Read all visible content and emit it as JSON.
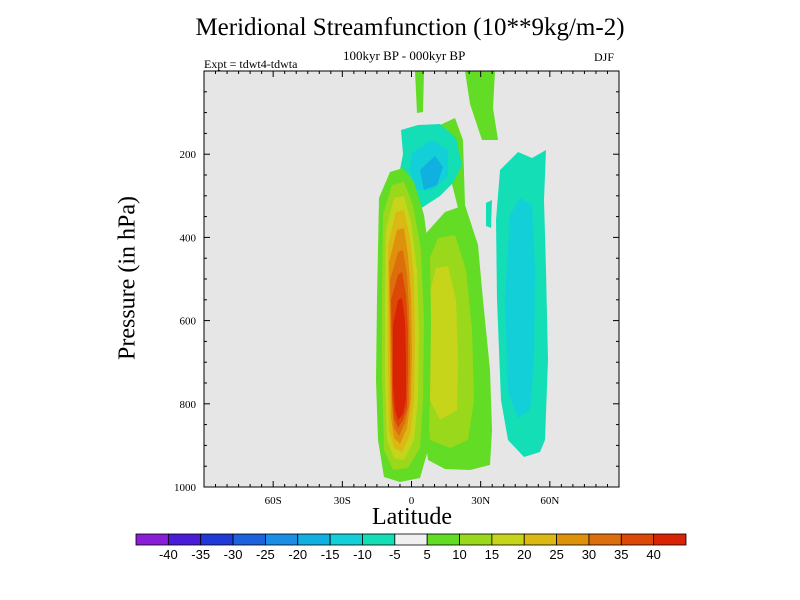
{
  "chart_data": {
    "type": "contour",
    "title": "Meridional Streamfunction (10**9kg/m-2)",
    "subtitle": "100kyr BP - 000kyr BP",
    "left_annotation": "Expt = tdwt4-tdwta",
    "right_annotation": "DJF",
    "xlabel": "Latitude",
    "ylabel": "Pressure (in hPa)",
    "xlim": [
      -90,
      90
    ],
    "ylim": [
      1000,
      0
    ],
    "x_ticks": [
      -60,
      -30,
      0,
      30,
      60
    ],
    "x_tick_labels": [
      "60S",
      "30S",
      "0",
      "30N",
      "60N"
    ],
    "y_ticks": [
      200,
      400,
      600,
      800,
      1000
    ],
    "y_tick_labels": [
      "200",
      "400",
      "600",
      "800",
      "1000"
    ],
    "background_color": "#e6e6e6",
    "colorbar": {
      "levels": [
        "-40",
        "-35",
        "-30",
        "-25",
        "-20",
        "-15",
        "-10",
        "-5",
        "5",
        "10",
        "15",
        "20",
        "25",
        "30",
        "35",
        "40"
      ],
      "colors": [
        "#8a1ed8",
        "#4b1cd8",
        "#1f3ad6",
        "#1b62dc",
        "#1a8ee4",
        "#10b0e0",
        "#12cfd8",
        "#14deb6",
        "#f0f0f0",
        "#62dc24",
        "#9ad81c",
        "#c6d41a",
        "#dcb814",
        "#de920c",
        "#dc6e0c",
        "#dc4806",
        "#d82404"
      ]
    },
    "contour_shapes": [
      {
        "name": "equatorial-cell-positive",
        "peak_value": 40,
        "lat_range": [
          -15,
          10
        ],
        "p_range": [
          290,
          980
        ]
      },
      {
        "name": "tropical-nh-positive",
        "peak_value": 20,
        "lat_range": [
          5,
          35
        ],
        "p_range": [
          340,
          970
        ]
      },
      {
        "name": "upper-tropical-negative",
        "peak_value": -15,
        "lat_range": [
          -5,
          20
        ],
        "p_range": [
          160,
          330
        ]
      },
      {
        "name": "midlatitude-nh-negative",
        "peak_value": -15,
        "lat_range": [
          38,
          60
        ],
        "p_range": [
          200,
          920
        ]
      },
      {
        "name": "nh-upper-positive-streaks",
        "peak_value": 5,
        "lat_range": [
          0,
          40
        ],
        "p_range": [
          0,
          200
        ]
      }
    ]
  }
}
